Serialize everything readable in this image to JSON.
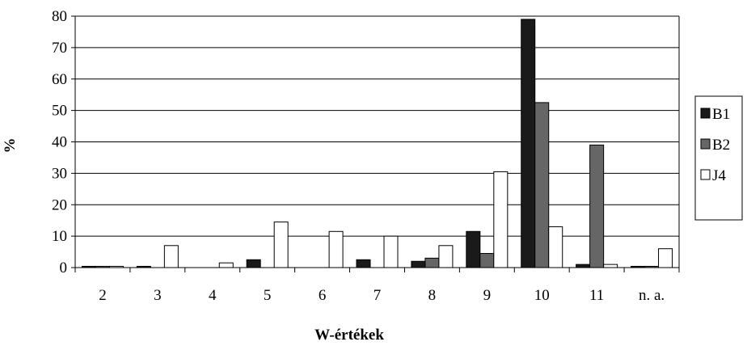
{
  "chart_data": {
    "type": "bar",
    "xlabel": "W-értékek",
    "ylabel": "%",
    "ylim": [
      0,
      80
    ],
    "yticks": [
      0,
      10,
      20,
      30,
      40,
      50,
      60,
      70,
      80
    ],
    "grid": true,
    "legend_position": "right",
    "categories": [
      "2",
      "3",
      "4",
      "5",
      "6",
      "7",
      "8",
      "9",
      "10",
      "11",
      "n. a."
    ],
    "series": [
      {
        "name": "B1",
        "color": "#1a1a1a",
        "values": [
          0.4,
          0.4,
          0,
          2.5,
          0,
          2.5,
          2,
          11.5,
          79,
          1,
          0.4
        ]
      },
      {
        "name": "B2",
        "color": "#666666",
        "values": [
          0.4,
          0,
          0,
          0,
          0,
          0,
          3,
          4.5,
          52.5,
          39,
          0.4
        ]
      },
      {
        "name": "J4",
        "color": "#ffffff",
        "values": [
          0.4,
          7,
          1.5,
          14.5,
          11.5,
          10,
          7,
          30.5,
          13,
          1,
          6
        ]
      }
    ]
  }
}
